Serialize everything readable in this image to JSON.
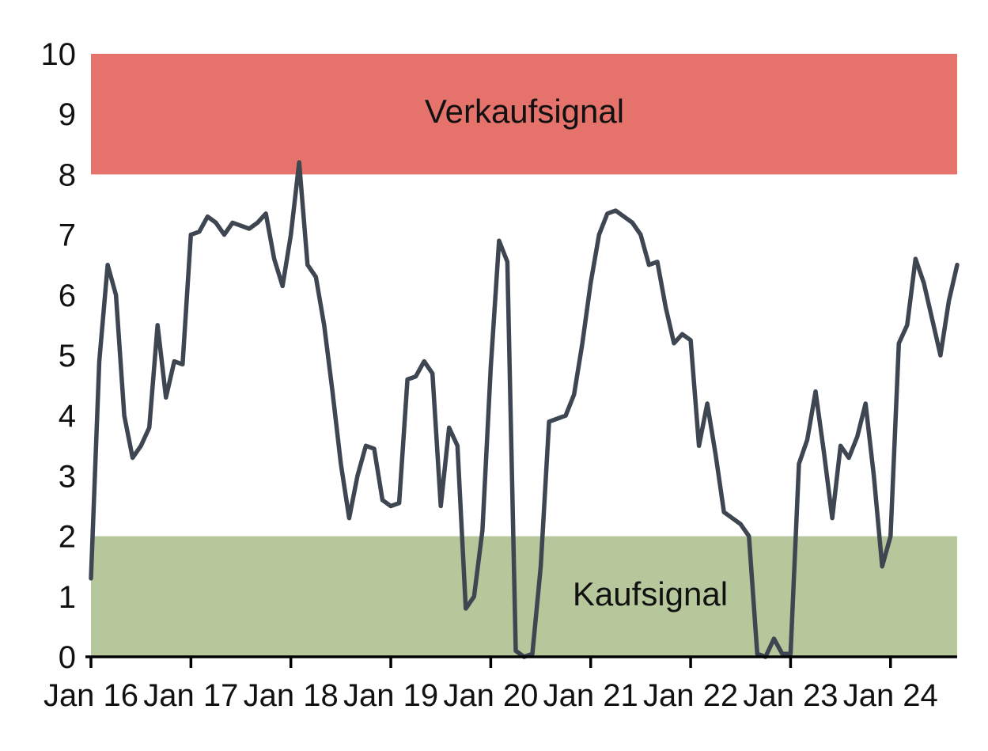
{
  "chart_data": {
    "type": "line",
    "title": "",
    "xlabel": "",
    "ylabel": "",
    "ylim": [
      0,
      10
    ],
    "y_ticks": [
      0,
      1,
      2,
      3,
      4,
      5,
      6,
      7,
      8,
      9,
      10
    ],
    "x_tick_labels": [
      "Jan 16",
      "Jan 17",
      "Jan 18",
      "Jan 19",
      "Jan 20",
      "Jan 21",
      "Jan 22",
      "Jan 23",
      "Jan 24"
    ],
    "x_tick_every_n_points": 12,
    "x_monthly_start": "2016-01",
    "x_monthly_end": "2024-09",
    "grid": false,
    "legend": false,
    "axis_color": "#000000",
    "text_color": "#111111",
    "bands": [
      {
        "name": "sell-band",
        "label": "Verkaufsignal",
        "from": 8,
        "to": 10,
        "color": "#e5726b"
      },
      {
        "name": "buy-band",
        "label": "Kaufsignal",
        "from": 0,
        "to": 2,
        "color": "#b6c79b"
      }
    ],
    "series": [
      {
        "name": "indicator",
        "color": "#3e4651",
        "stroke_width": 5.5,
        "values": [
          1.3,
          4.9,
          6.5,
          6.0,
          4.0,
          3.3,
          3.5,
          3.8,
          5.5,
          4.3,
          4.9,
          4.85,
          7.0,
          7.05,
          7.3,
          7.2,
          7.0,
          7.2,
          7.15,
          7.1,
          7.2,
          7.35,
          6.6,
          6.15,
          7.0,
          8.2,
          6.5,
          6.3,
          5.5,
          4.4,
          3.2,
          2.3,
          3.0,
          3.5,
          3.45,
          2.6,
          2.5,
          2.55,
          4.6,
          4.65,
          4.9,
          4.7,
          2.5,
          3.8,
          3.5,
          0.8,
          1.0,
          2.1,
          4.8,
          6.9,
          6.55,
          0.1,
          0.0,
          0.05,
          1.5,
          3.9,
          3.95,
          4.0,
          4.35,
          5.2,
          6.2,
          7.0,
          7.35,
          7.4,
          7.3,
          7.2,
          7.0,
          6.5,
          6.55,
          5.8,
          5.2,
          5.35,
          5.25,
          3.5,
          4.2,
          3.35,
          2.4,
          2.3,
          2.2,
          2.0,
          0.05,
          0.0,
          0.3,
          0.05,
          0.05,
          3.2,
          3.6,
          4.4,
          3.4,
          2.3,
          3.5,
          3.3,
          3.65,
          4.2,
          3.0,
          1.5,
          2.0,
          5.2,
          5.5,
          6.6,
          6.2,
          5.6,
          5.0,
          5.9,
          6.5
        ]
      }
    ]
  }
}
